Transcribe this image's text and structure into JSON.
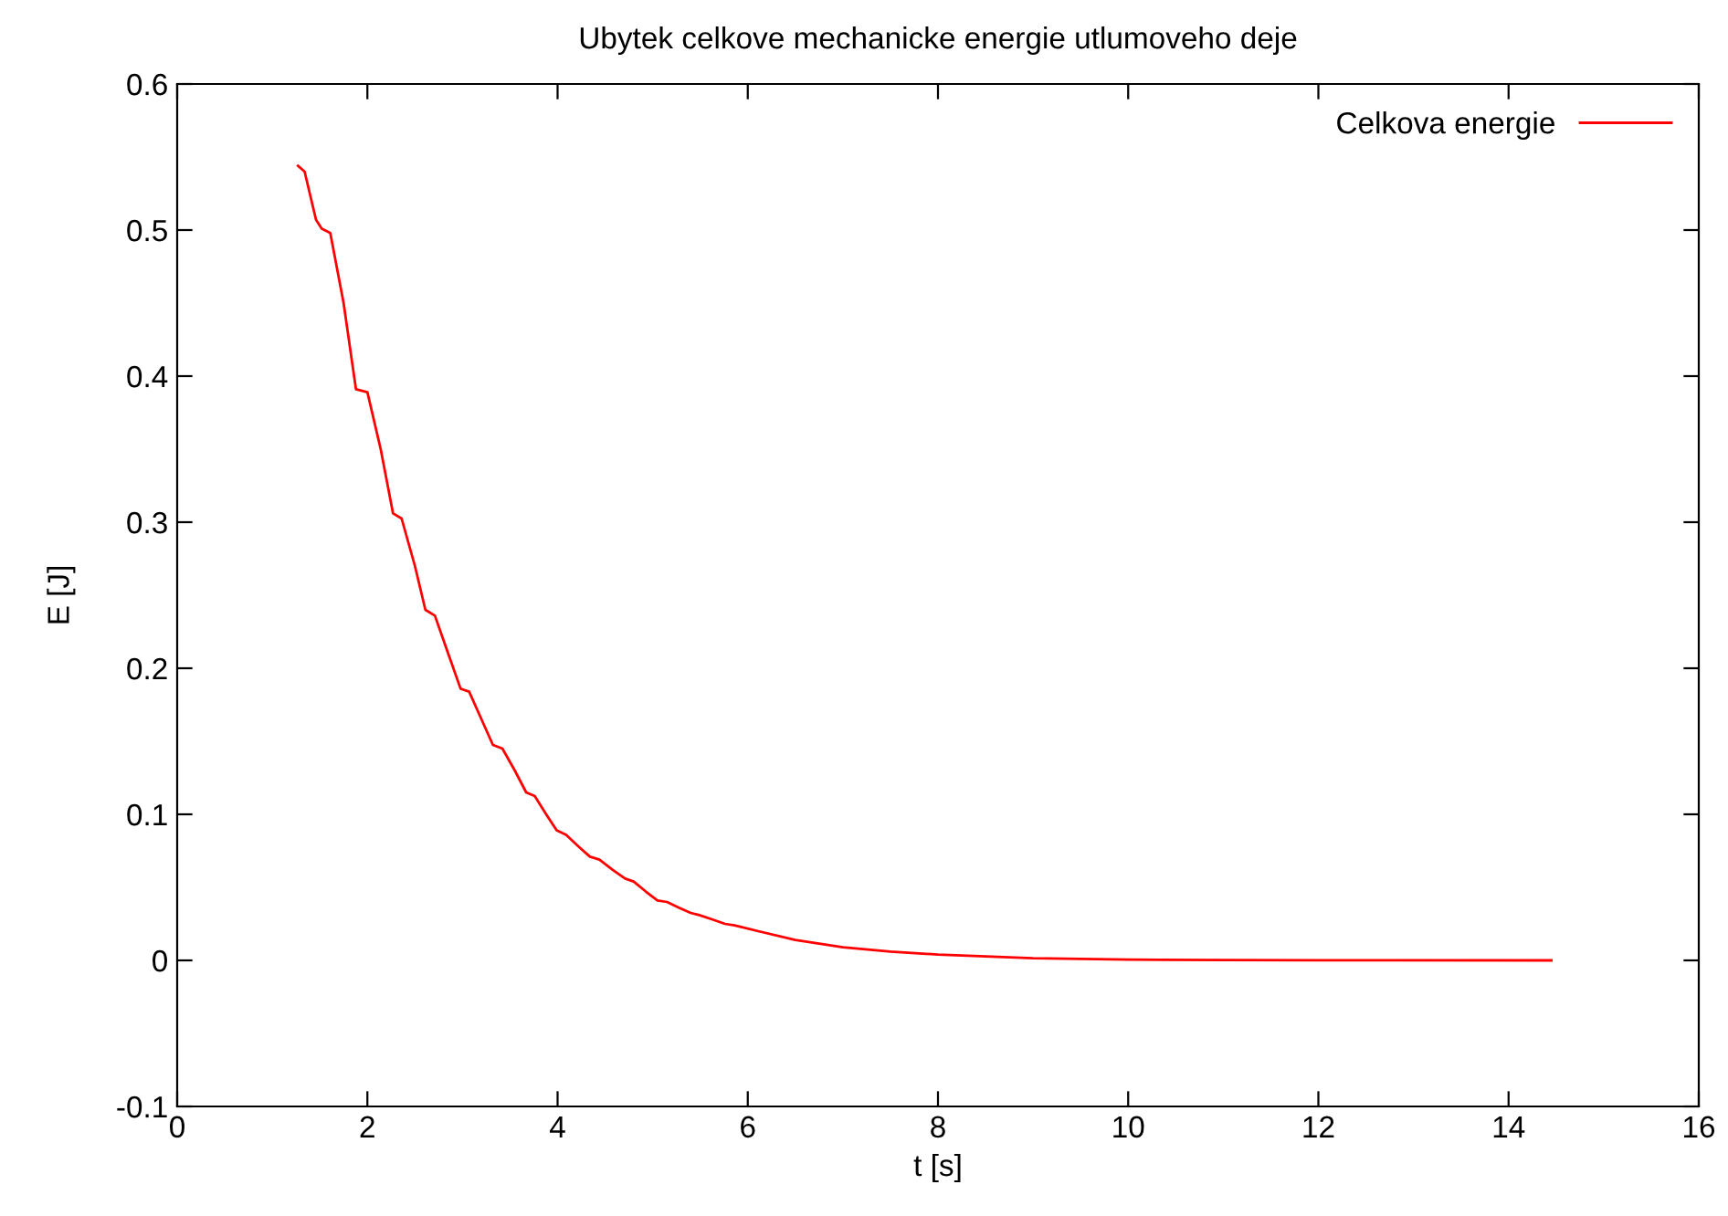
{
  "chart_data": {
    "type": "line",
    "title": "Ubytek celkove mechanicke energie utlumoveho deje",
    "xlabel": "t [s]",
    "ylabel": "E [J]",
    "xlim": [
      0,
      16
    ],
    "xticks": [
      0,
      2,
      4,
      6,
      8,
      10,
      12,
      14,
      16
    ],
    "ylim": [
      -0.1,
      0.6
    ],
    "yticks": [
      -0.1,
      0,
      0.1,
      0.2,
      0.3,
      0.4,
      0.5,
      0.6
    ],
    "grid": false,
    "legend": "top right",
    "marker": "none",
    "line_style": "solid",
    "series": [
      {
        "name": "Celkova energie",
        "color": "#ff0000",
        "x": [
          1.27,
          1.34,
          1.46,
          1.52,
          1.61,
          1.75,
          1.88,
          2.0,
          2.14,
          2.27,
          2.36,
          2.5,
          2.61,
          2.71,
          2.85,
          2.98,
          3.07,
          3.2,
          3.32,
          3.42,
          3.55,
          3.67,
          3.76,
          3.88,
          3.99,
          4.09,
          4.22,
          4.34,
          4.44,
          4.58,
          4.71,
          4.8,
          4.93,
          5.05,
          5.15,
          5.28,
          5.4,
          5.49,
          5.63,
          5.76,
          5.86,
          6.11,
          6.5,
          7.0,
          7.5,
          8.0,
          9.0,
          10.0,
          11.0,
          12.0,
          14.45
        ],
        "values": [
          0.544,
          0.54,
          0.507,
          0.501,
          0.498,
          0.45,
          0.391,
          0.389,
          0.35,
          0.306,
          0.3025,
          0.27,
          0.24,
          0.236,
          0.21,
          0.186,
          0.184,
          0.165,
          0.1475,
          0.145,
          0.13,
          0.115,
          0.1125,
          0.1,
          0.089,
          0.086,
          0.078,
          0.071,
          0.069,
          0.062,
          0.056,
          0.054,
          0.047,
          0.041,
          0.04,
          0.036,
          0.0325,
          0.031,
          0.028,
          0.025,
          0.024,
          0.02,
          0.014,
          0.009,
          0.006,
          0.004,
          0.0015,
          0.0005,
          0.0002,
          0.0001,
          0.0
        ]
      }
    ]
  }
}
